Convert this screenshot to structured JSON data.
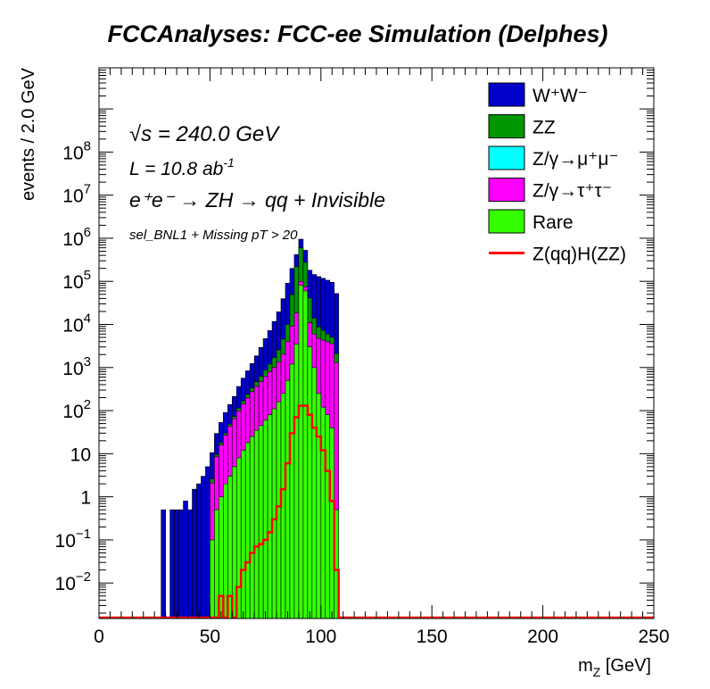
{
  "chart_data": {
    "type": "histogram",
    "title": "FCCAnalyses: FCC-ee Simulation (Delphes)",
    "xlabel": "m_Z [GeV]",
    "ylabel": "events / 2.0 GeV",
    "xlim": [
      0,
      250
    ],
    "ylim": [
      0.0015,
      9000000000
    ],
    "log_y": true,
    "bin_width": 2,
    "x_ticks": [
      "0",
      "50",
      "100",
      "150",
      "200",
      "250"
    ],
    "y_ticks": [
      {
        "v": 0.01,
        "base": "10",
        "exp": "−2"
      },
      {
        "v": 0.1,
        "base": "10",
        "exp": "−1"
      },
      {
        "v": 1,
        "base": "1",
        "exp": ""
      },
      {
        "v": 10,
        "base": "10",
        "exp": ""
      },
      {
        "v": 100,
        "base": "10",
        "exp": "2"
      },
      {
        "v": 1000,
        "base": "10",
        "exp": "3"
      },
      {
        "v": 10000,
        "base": "10",
        "exp": "4"
      },
      {
        "v": 100000,
        "base": "10",
        "exp": "5"
      },
      {
        "v": 1000000,
        "base": "10",
        "exp": "6"
      },
      {
        "v": 10000000,
        "base": "10",
        "exp": "7"
      },
      {
        "v": 100000000,
        "base": "10",
        "exp": "8"
      }
    ],
    "annotations": {
      "sqrt_s": "√s = 240.0 GeV",
      "lumi_base": "L = 10.8 ab",
      "lumi_exp": "-1",
      "process": "e⁺e⁻ → ZH → qq + Invisible",
      "selection": "sel_BNL1 + Missing pT > 20"
    },
    "legend_position": "top-right",
    "stack_order": [
      "Rare",
      "Z/γ→τ⁺τ⁻",
      "Z/γ→μ⁺μ⁻",
      "ZZ",
      "W⁺W⁻"
    ],
    "series": [
      {
        "name": "W⁺W⁻",
        "legend": "W⁺W⁻",
        "color": "#0000c8",
        "kind": "stacked",
        "bins": [
          [
            28,
            30,
            0.5
          ],
          [
            30,
            32,
            0.0015
          ],
          [
            32,
            34,
            0.5
          ],
          [
            34,
            36,
            0.5
          ],
          [
            36,
            38,
            0.5
          ],
          [
            38,
            40,
            0.8
          ],
          [
            40,
            42,
            0.5
          ],
          [
            42,
            44,
            1.5
          ],
          [
            44,
            46,
            2
          ],
          [
            46,
            48,
            3
          ],
          [
            48,
            50,
            5
          ],
          [
            50,
            52,
            8
          ],
          [
            52,
            54,
            20
          ],
          [
            54,
            56,
            35
          ],
          [
            56,
            58,
            60
          ],
          [
            58,
            60,
            90
          ],
          [
            60,
            62,
            140
          ],
          [
            62,
            64,
            250
          ],
          [
            64,
            66,
            400
          ],
          [
            66,
            68,
            600
          ],
          [
            68,
            70,
            900
          ],
          [
            70,
            72,
            1400
          ],
          [
            72,
            74,
            2300
          ],
          [
            74,
            76,
            3800
          ],
          [
            76,
            78,
            6000
          ],
          [
            78,
            80,
            10000
          ],
          [
            80,
            82,
            17000
          ],
          [
            82,
            84,
            35000
          ],
          [
            84,
            86,
            80000
          ],
          [
            86,
            88,
            150000
          ],
          [
            88,
            90,
            200000
          ],
          [
            90,
            92,
            350000
          ],
          [
            92,
            94,
            250000
          ],
          [
            94,
            96,
            140000
          ],
          [
            96,
            98,
            130000
          ],
          [
            98,
            100,
            120000
          ],
          [
            100,
            102,
            110000
          ],
          [
            102,
            104,
            100000
          ],
          [
            104,
            106,
            90000
          ],
          [
            106,
            108,
            50000
          ]
        ]
      },
      {
        "name": "ZZ",
        "legend": "ZZ",
        "color": "#009600",
        "kind": "stacked",
        "bins": [
          [
            50,
            52,
            0.5
          ],
          [
            52,
            54,
            1
          ],
          [
            54,
            56,
            2
          ],
          [
            56,
            58,
            3
          ],
          [
            58,
            60,
            5
          ],
          [
            60,
            62,
            8
          ],
          [
            62,
            64,
            15
          ],
          [
            64,
            66,
            25
          ],
          [
            66,
            68,
            40
          ],
          [
            68,
            70,
            60
          ],
          [
            70,
            72,
            100
          ],
          [
            72,
            74,
            150
          ],
          [
            74,
            76,
            250
          ],
          [
            76,
            78,
            400
          ],
          [
            78,
            80,
            700
          ],
          [
            80,
            82,
            1200
          ],
          [
            82,
            84,
            2500
          ],
          [
            84,
            86,
            6000
          ],
          [
            86,
            88,
            40000
          ],
          [
            88,
            90,
            200000
          ],
          [
            90,
            92,
            500000
          ],
          [
            92,
            94,
            200000
          ],
          [
            94,
            96,
            30000
          ],
          [
            96,
            98,
            8000
          ],
          [
            98,
            100,
            4000
          ],
          [
            100,
            102,
            3000
          ],
          [
            102,
            104,
            2000
          ],
          [
            104,
            106,
            1500
          ],
          [
            106,
            108,
            800
          ]
        ]
      },
      {
        "name": "Z/γ→μ⁺μ⁻",
        "legend": "Z/γ→μ⁺μ⁻",
        "color": "#00ffff",
        "kind": "stacked",
        "bins": []
      },
      {
        "name": "Z/γ→τ⁺τ⁻",
        "legend": "Z/γ→τ⁺τ⁻",
        "color": "#ff00ff",
        "kind": "stacked",
        "bins": [
          [
            50,
            52,
            2
          ],
          [
            52,
            54,
            8
          ],
          [
            54,
            56,
            15
          ],
          [
            56,
            58,
            25
          ],
          [
            58,
            60,
            40
          ],
          [
            60,
            62,
            60
          ],
          [
            62,
            64,
            90
          ],
          [
            64,
            66,
            130
          ],
          [
            66,
            68,
            180
          ],
          [
            68,
            70,
            250
          ],
          [
            70,
            72,
            330
          ],
          [
            72,
            74,
            430
          ],
          [
            74,
            76,
            560
          ],
          [
            76,
            78,
            720
          ],
          [
            78,
            80,
            900
          ],
          [
            80,
            82,
            1200
          ],
          [
            82,
            84,
            1800
          ],
          [
            84,
            86,
            3500
          ],
          [
            86,
            88,
            8000
          ],
          [
            88,
            90,
            15000
          ],
          [
            90,
            92,
            20000
          ],
          [
            92,
            94,
            15000
          ],
          [
            94,
            96,
            8000
          ],
          [
            96,
            98,
            5000
          ],
          [
            98,
            100,
            4500
          ],
          [
            100,
            102,
            4200
          ],
          [
            102,
            104,
            3900
          ],
          [
            104,
            106,
            3500
          ],
          [
            106,
            108,
            1300
          ]
        ]
      },
      {
        "name": "Rare",
        "legend": "Rare",
        "color": "#33ff00",
        "kind": "stacked",
        "bins": [
          [
            50,
            52,
            0.1
          ],
          [
            52,
            54,
            0.5
          ],
          [
            54,
            56,
            1
          ],
          [
            56,
            58,
            2
          ],
          [
            58,
            60,
            3
          ],
          [
            60,
            62,
            5
          ],
          [
            62,
            64,
            8
          ],
          [
            64,
            66,
            12
          ],
          [
            66,
            68,
            18
          ],
          [
            68,
            70,
            25
          ],
          [
            70,
            72,
            35
          ],
          [
            72,
            74,
            45
          ],
          [
            74,
            76,
            60
          ],
          [
            76,
            78,
            80
          ],
          [
            78,
            80,
            110
          ],
          [
            80,
            82,
            160
          ],
          [
            82,
            84,
            250
          ],
          [
            84,
            86,
            500
          ],
          [
            86,
            88,
            1200
          ],
          [
            88,
            90,
            3500
          ],
          [
            90,
            92,
            80000
          ],
          [
            92,
            94,
            60000
          ],
          [
            94,
            96,
            3000
          ],
          [
            96,
            98,
            1000
          ],
          [
            98,
            100,
            250
          ],
          [
            100,
            102,
            120
          ],
          [
            102,
            104,
            80
          ],
          [
            104,
            106,
            40
          ],
          [
            106,
            108,
            0.5
          ]
        ]
      },
      {
        "name": "Z(qq)H(ZZ)",
        "legend": "Z(qq)H(ZZ)",
        "color": "#ff0000",
        "kind": "line",
        "bins": [
          [
            54,
            56,
            0.005
          ],
          [
            56,
            58,
            0.0015
          ],
          [
            58,
            60,
            0.005
          ],
          [
            60,
            62,
            0.0015
          ],
          [
            62,
            64,
            0.008
          ],
          [
            64,
            66,
            0.02
          ],
          [
            66,
            68,
            0.03
          ],
          [
            68,
            70,
            0.05
          ],
          [
            70,
            72,
            0.07
          ],
          [
            72,
            74,
            0.08
          ],
          [
            74,
            76,
            0.1
          ],
          [
            76,
            78,
            0.15
          ],
          [
            78,
            80,
            0.3
          ],
          [
            80,
            82,
            0.6
          ],
          [
            82,
            84,
            1.5
          ],
          [
            84,
            86,
            6
          ],
          [
            86,
            88,
            30
          ],
          [
            88,
            90,
            70
          ],
          [
            90,
            92,
            130
          ],
          [
            92,
            94,
            130
          ],
          [
            94,
            96,
            80
          ],
          [
            96,
            98,
            40
          ],
          [
            98,
            100,
            25
          ],
          [
            100,
            102,
            12
          ],
          [
            102,
            104,
            4
          ],
          [
            104,
            106,
            0.8
          ],
          [
            106,
            108,
            0.02
          ]
        ]
      }
    ]
  }
}
